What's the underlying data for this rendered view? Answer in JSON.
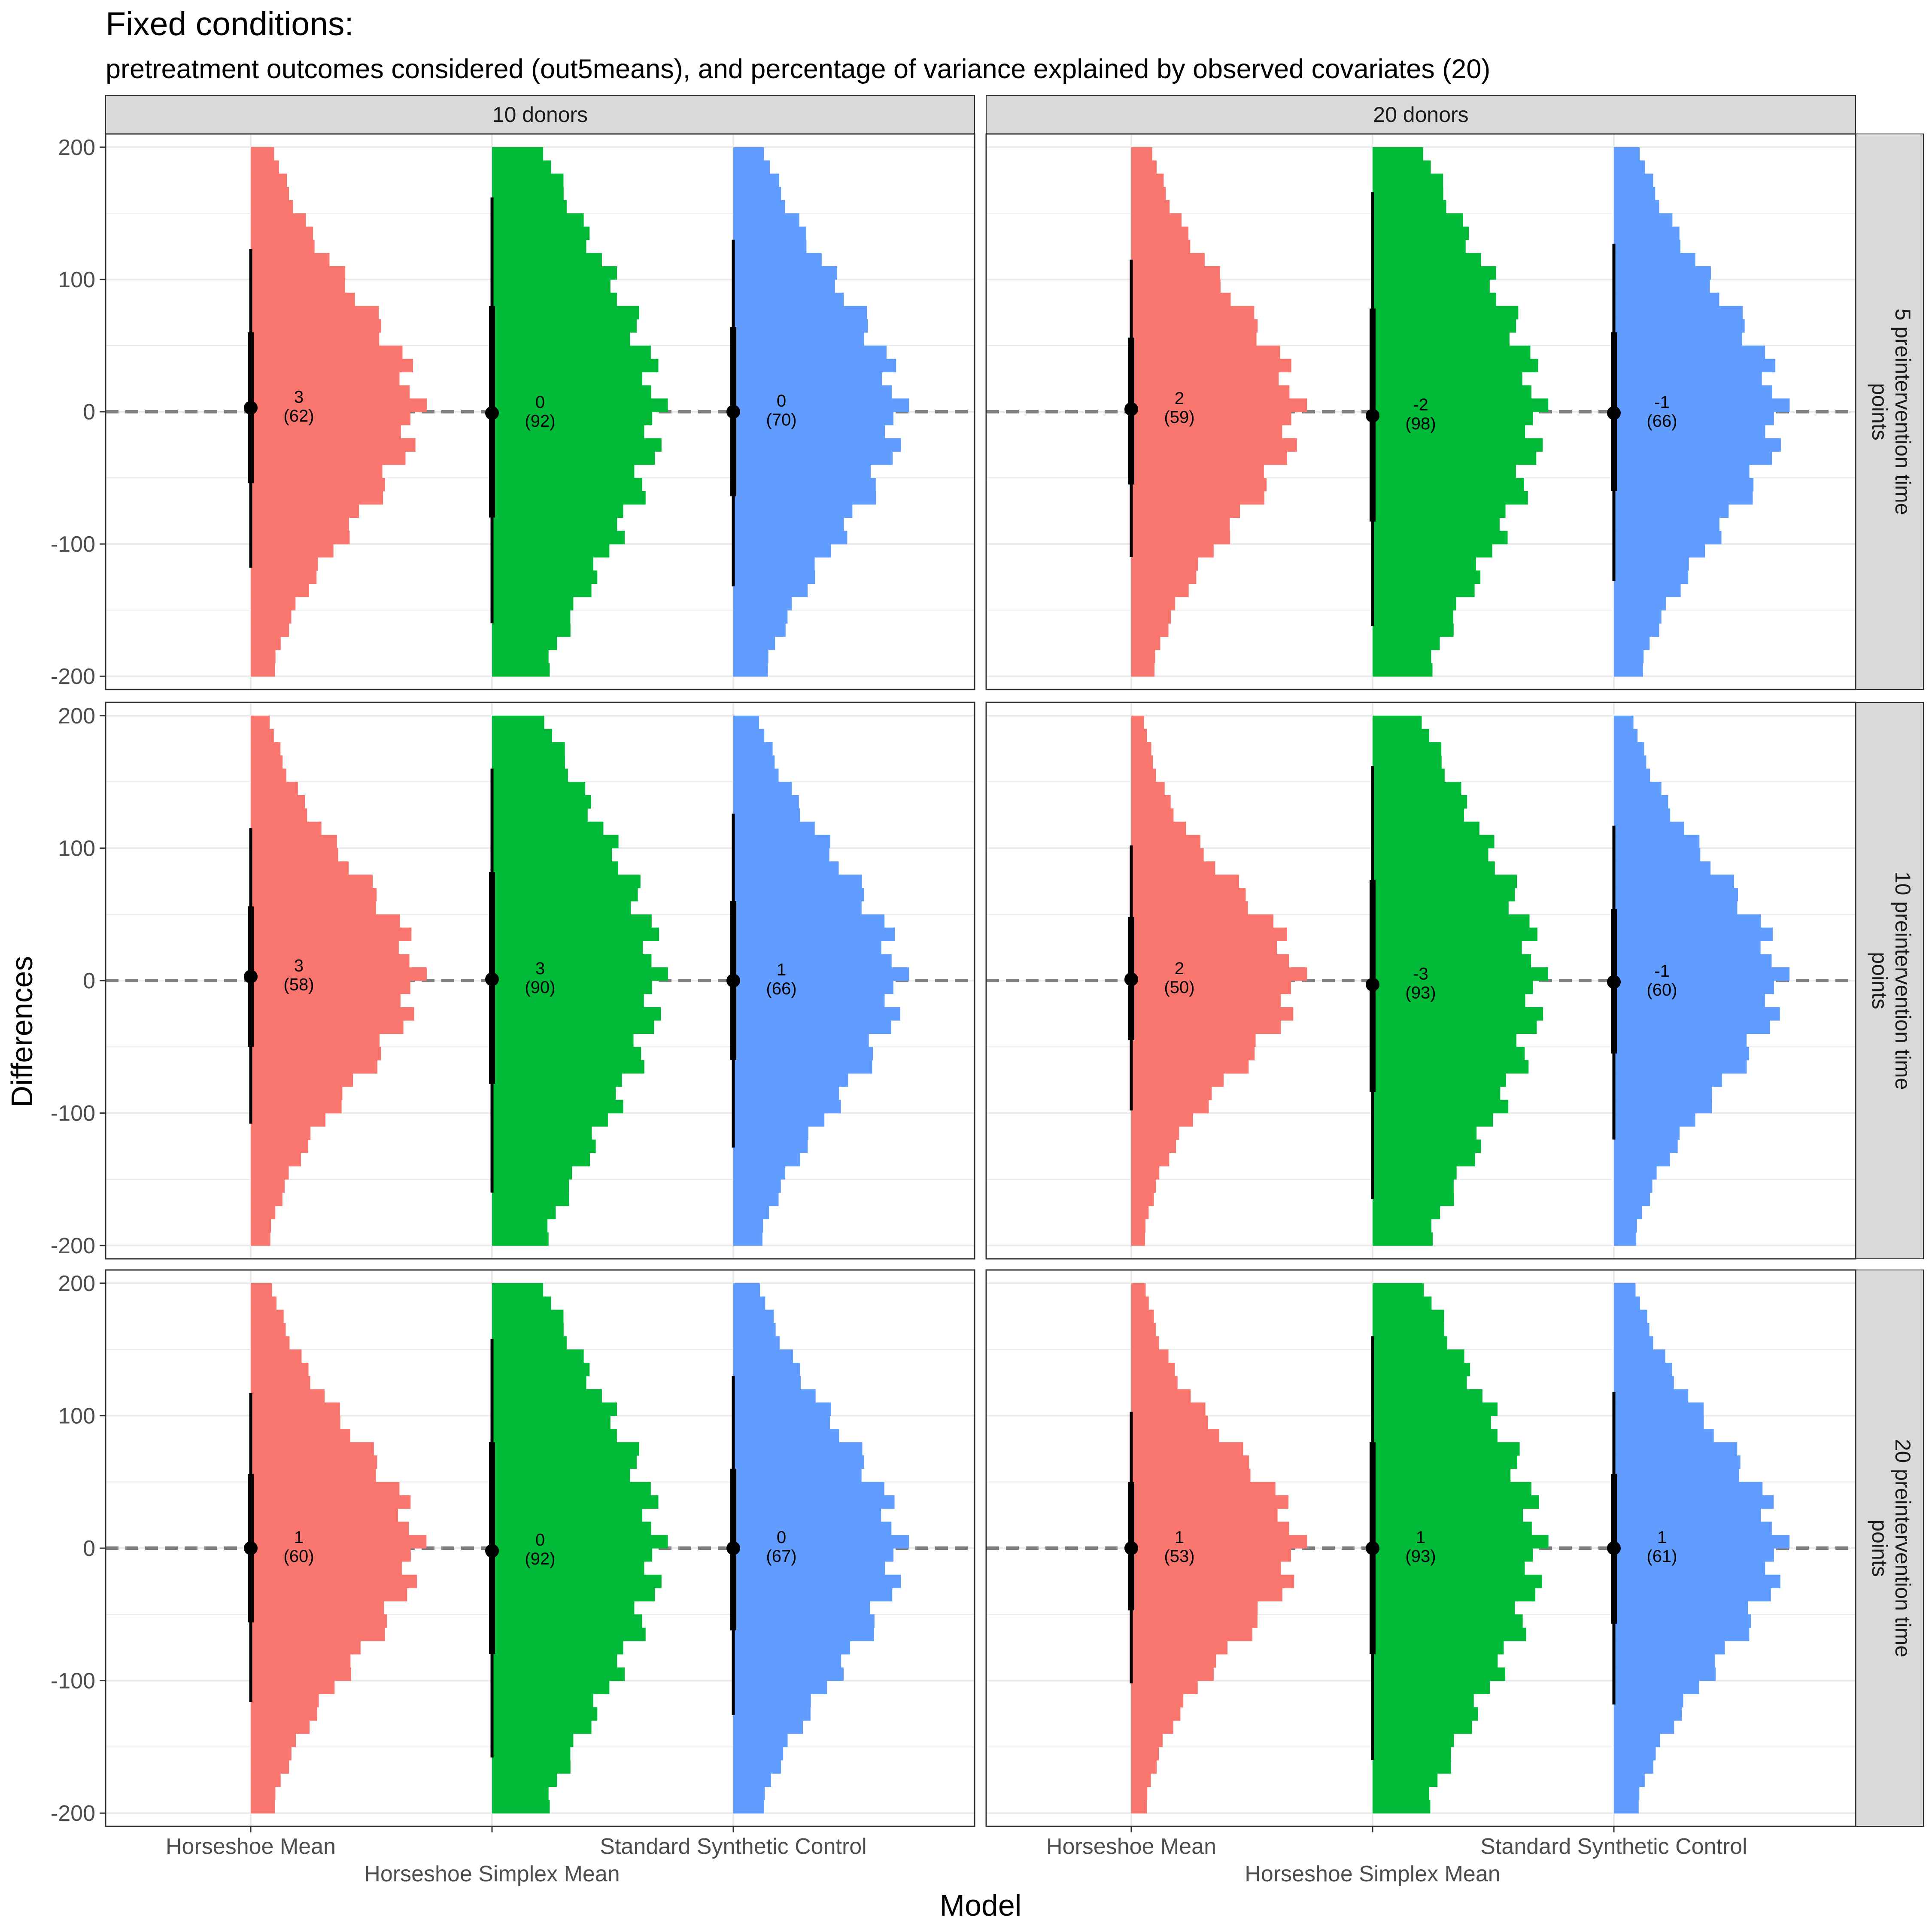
{
  "chart_data": {
    "type": "histogram-violin",
    "title": "Fixed conditions:",
    "subtitle": "pretreatment outcomes considered (out5means), and percentage of variance explained by observed covariates (20)",
    "xlabel": "Model",
    "ylabel": "Differences",
    "ylim": [
      -210,
      210
    ],
    "yticks": [
      -200,
      -100,
      0,
      100,
      200
    ],
    "grid": true,
    "models": [
      "Horseshoe Mean",
      "Horseshoe Simplex Mean",
      "Standard Synthetic Control"
    ],
    "colors": {
      "Horseshoe Mean": "#F8766D",
      "Horseshoe Simplex Mean": "#00BA38",
      "Standard Synthetic Control": "#619CFF"
    },
    "reference_line": 0,
    "col_facets": [
      "10 donors",
      "20 donors"
    ],
    "row_facets": [
      "5 preintervention time points",
      "10 preintervention time points",
      "20 preintervention time points"
    ],
    "panels": [
      {
        "col": "10 donors",
        "row": "5 preintervention time points",
        "summaries": [
          {
            "model": "Horseshoe Mean",
            "median": 3,
            "spread": 62,
            "label": "3",
            "sublabel": "(62)",
            "q25": -54,
            "q75": 60,
            "lo": -118,
            "hi": 123
          },
          {
            "model": "Horseshoe Simplex Mean",
            "median": -1,
            "spread": 92,
            "label": "0",
            "sublabel": "(92)",
            "q25": -80,
            "q75": 80,
            "lo": -160,
            "hi": 162
          },
          {
            "model": "Standard Synthetic Control",
            "median": 0,
            "spread": 70,
            "label": "0",
            "sublabel": "(70)",
            "q25": -64,
            "q75": 64,
            "lo": -132,
            "hi": 130
          }
        ]
      },
      {
        "col": "20 donors",
        "row": "5 preintervention time points",
        "summaries": [
          {
            "model": "Horseshoe Mean",
            "median": 2,
            "spread": 59,
            "label": "2",
            "sublabel": "(59)",
            "q25": -55,
            "q75": 56,
            "lo": -110,
            "hi": 115
          },
          {
            "model": "Horseshoe Simplex Mean",
            "median": -3,
            "spread": 98,
            "label": "-2",
            "sublabel": "(98)",
            "q25": -83,
            "q75": 78,
            "lo": -162,
            "hi": 166
          },
          {
            "model": "Standard Synthetic Control",
            "median": -1,
            "spread": 66,
            "label": "-1",
            "sublabel": "(66)",
            "q25": -60,
            "q75": 60,
            "lo": -128,
            "hi": 127
          }
        ]
      },
      {
        "col": "10 donors",
        "row": "10 preintervention time points",
        "summaries": [
          {
            "model": "Horseshoe Mean",
            "median": 3,
            "spread": 58,
            "label": "3",
            "sublabel": "(58)",
            "q25": -50,
            "q75": 56,
            "lo": -108,
            "hi": 115
          },
          {
            "model": "Horseshoe Simplex Mean",
            "median": 1,
            "spread": 90,
            "label": "3",
            "sublabel": "(90)",
            "q25": -78,
            "q75": 82,
            "lo": -160,
            "hi": 160
          },
          {
            "model": "Standard Synthetic Control",
            "median": 0,
            "spread": 66,
            "label": "1",
            "sublabel": "(66)",
            "q25": -60,
            "q75": 60,
            "lo": -126,
            "hi": 126
          }
        ]
      },
      {
        "col": "20 donors",
        "row": "10 preintervention time points",
        "summaries": [
          {
            "model": "Horseshoe Mean",
            "median": 1,
            "spread": 50,
            "label": "2",
            "sublabel": "(50)",
            "q25": -45,
            "q75": 48,
            "lo": -98,
            "hi": 102
          },
          {
            "model": "Horseshoe Simplex Mean",
            "median": -3,
            "spread": 93,
            "label": "-3",
            "sublabel": "(93)",
            "q25": -84,
            "q75": 76,
            "lo": -165,
            "hi": 162
          },
          {
            "model": "Standard Synthetic Control",
            "median": -1,
            "spread": 60,
            "label": "-1",
            "sublabel": "(60)",
            "q25": -55,
            "q75": 54,
            "lo": -120,
            "hi": 117
          }
        ]
      },
      {
        "col": "10 donors",
        "row": "20 preintervention time points",
        "summaries": [
          {
            "model": "Horseshoe Mean",
            "median": 0,
            "spread": 60,
            "label": "1",
            "sublabel": "(60)",
            "q25": -56,
            "q75": 56,
            "lo": -116,
            "hi": 117
          },
          {
            "model": "Horseshoe Simplex Mean",
            "median": -2,
            "spread": 92,
            "label": "0",
            "sublabel": "(92)",
            "q25": -80,
            "q75": 80,
            "lo": -158,
            "hi": 158
          },
          {
            "model": "Standard Synthetic Control",
            "median": 0,
            "spread": 67,
            "label": "0",
            "sublabel": "(67)",
            "q25": -62,
            "q75": 60,
            "lo": -126,
            "hi": 130
          }
        ]
      },
      {
        "col": "20 donors",
        "row": "20 preintervention time points",
        "summaries": [
          {
            "model": "Horseshoe Mean",
            "median": 0,
            "spread": 53,
            "label": "1",
            "sublabel": "(53)",
            "q25": -47,
            "q75": 50,
            "lo": -102,
            "hi": 103
          },
          {
            "model": "Horseshoe Simplex Mean",
            "median": 0,
            "spread": 93,
            "label": "1",
            "sublabel": "(93)",
            "q25": -80,
            "q75": 80,
            "lo": -160,
            "hi": 160
          },
          {
            "model": "Standard Synthetic Control",
            "median": 0,
            "spread": 61,
            "label": "1",
            "sublabel": "(61)",
            "q25": -57,
            "q75": 56,
            "lo": -118,
            "hi": 118
          }
        ]
      }
    ]
  }
}
